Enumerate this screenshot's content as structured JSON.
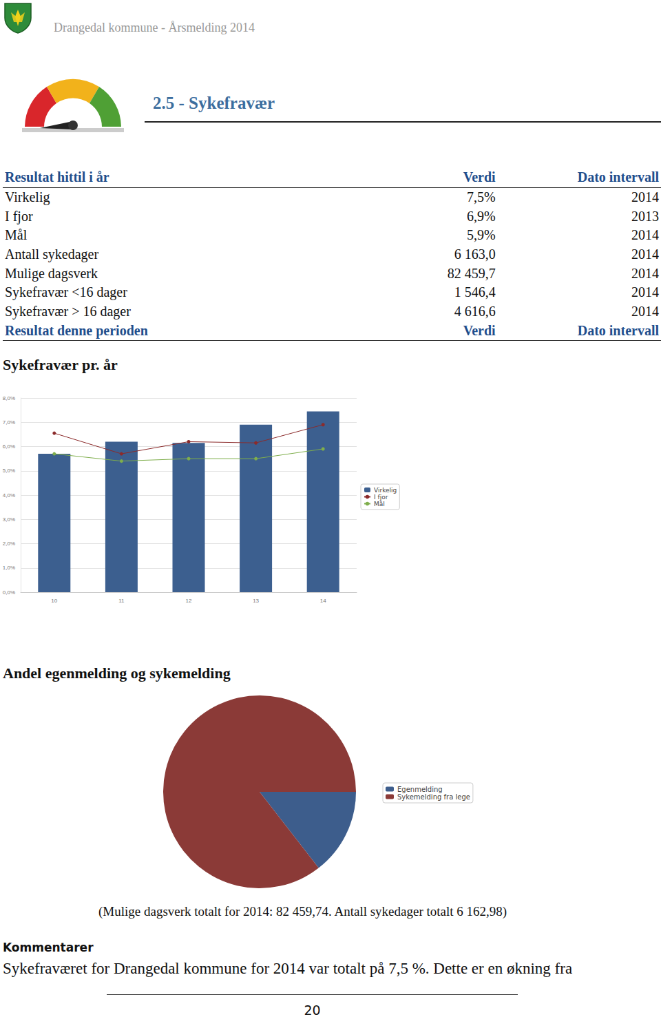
{
  "header": "Drangedal kommune - Årsmelding 2014",
  "section_title": "2.5 - Sykefravær",
  "table": {
    "header": [
      "Resultat hittil i år",
      "Verdi",
      "Dato intervall"
    ],
    "rows": [
      [
        "Virkelig",
        "7,5%",
        "2014"
      ],
      [
        "I fjor",
        "6,9%",
        "2013"
      ],
      [
        "Mål",
        "5,9%",
        "2014"
      ],
      [
        "Antall sykedager",
        "6 163,0",
        "2014"
      ],
      [
        "Mulige dagsverk",
        "82 459,7",
        "2014"
      ],
      [
        "Sykefravær <16 dager",
        "1 546,4",
        "2014"
      ],
      [
        "Sykefravær > 16 dager",
        "4 616,6",
        "2014"
      ]
    ],
    "footer": [
      "Resultat denne perioden",
      "Verdi",
      "Dato intervall"
    ]
  },
  "chart_data": [
    {
      "type": "bar",
      "title": "Sykefravær pr. år",
      "categories": [
        "10",
        "11",
        "12",
        "13",
        "14"
      ],
      "series": [
        {
          "name": "Virkelig",
          "type": "bar",
          "color": "#3c5f8f",
          "values": [
            5.7,
            6.2,
            6.15,
            6.9,
            7.45
          ]
        },
        {
          "name": "I fjor",
          "type": "line",
          "color": "#8b2b2b",
          "marker": "circle",
          "values": [
            6.55,
            5.7,
            6.2,
            6.15,
            6.9
          ]
        },
        {
          "name": "Mål",
          "type": "line",
          "color": "#7fae4c",
          "marker": "circle",
          "values": [
            5.7,
            5.4,
            5.5,
            5.5,
            5.9
          ]
        }
      ],
      "ylim": [
        0,
        8
      ],
      "yticks": [
        {
          "value": 0,
          "label": "0,0%"
        },
        {
          "value": 1,
          "label": "1,0%"
        },
        {
          "value": 2,
          "label": "2,0%"
        },
        {
          "value": 3,
          "label": "3,0%"
        },
        {
          "value": 4,
          "label": "4,0%"
        },
        {
          "value": 5,
          "label": "5,0%"
        },
        {
          "value": 6,
          "label": "6,0%"
        },
        {
          "value": 7,
          "label": "7,0%"
        },
        {
          "value": 8,
          "label": "8,0%"
        }
      ],
      "grid": true,
      "legend": "right"
    },
    {
      "type": "pie",
      "title": "Andel egenmelding og sykemelding",
      "categories": [
        "Egenmelding",
        "Sykemelding fra lege"
      ],
      "values": [
        14.5,
        85.5
      ],
      "colors": [
        "#3d5d8c",
        "#8b3a37"
      ],
      "legend": "right"
    }
  ],
  "note": "(Mulige dagsverk totalt for 2014:  82 459,74. Antall sykedager totalt 6 162,98)",
  "comments_heading": "Kommentarer",
  "comments_text": "Sykefraværet for Drangedal kommune for 2014 var totalt på 7,5 %. Dette er en økning fra",
  "page_number": "20"
}
